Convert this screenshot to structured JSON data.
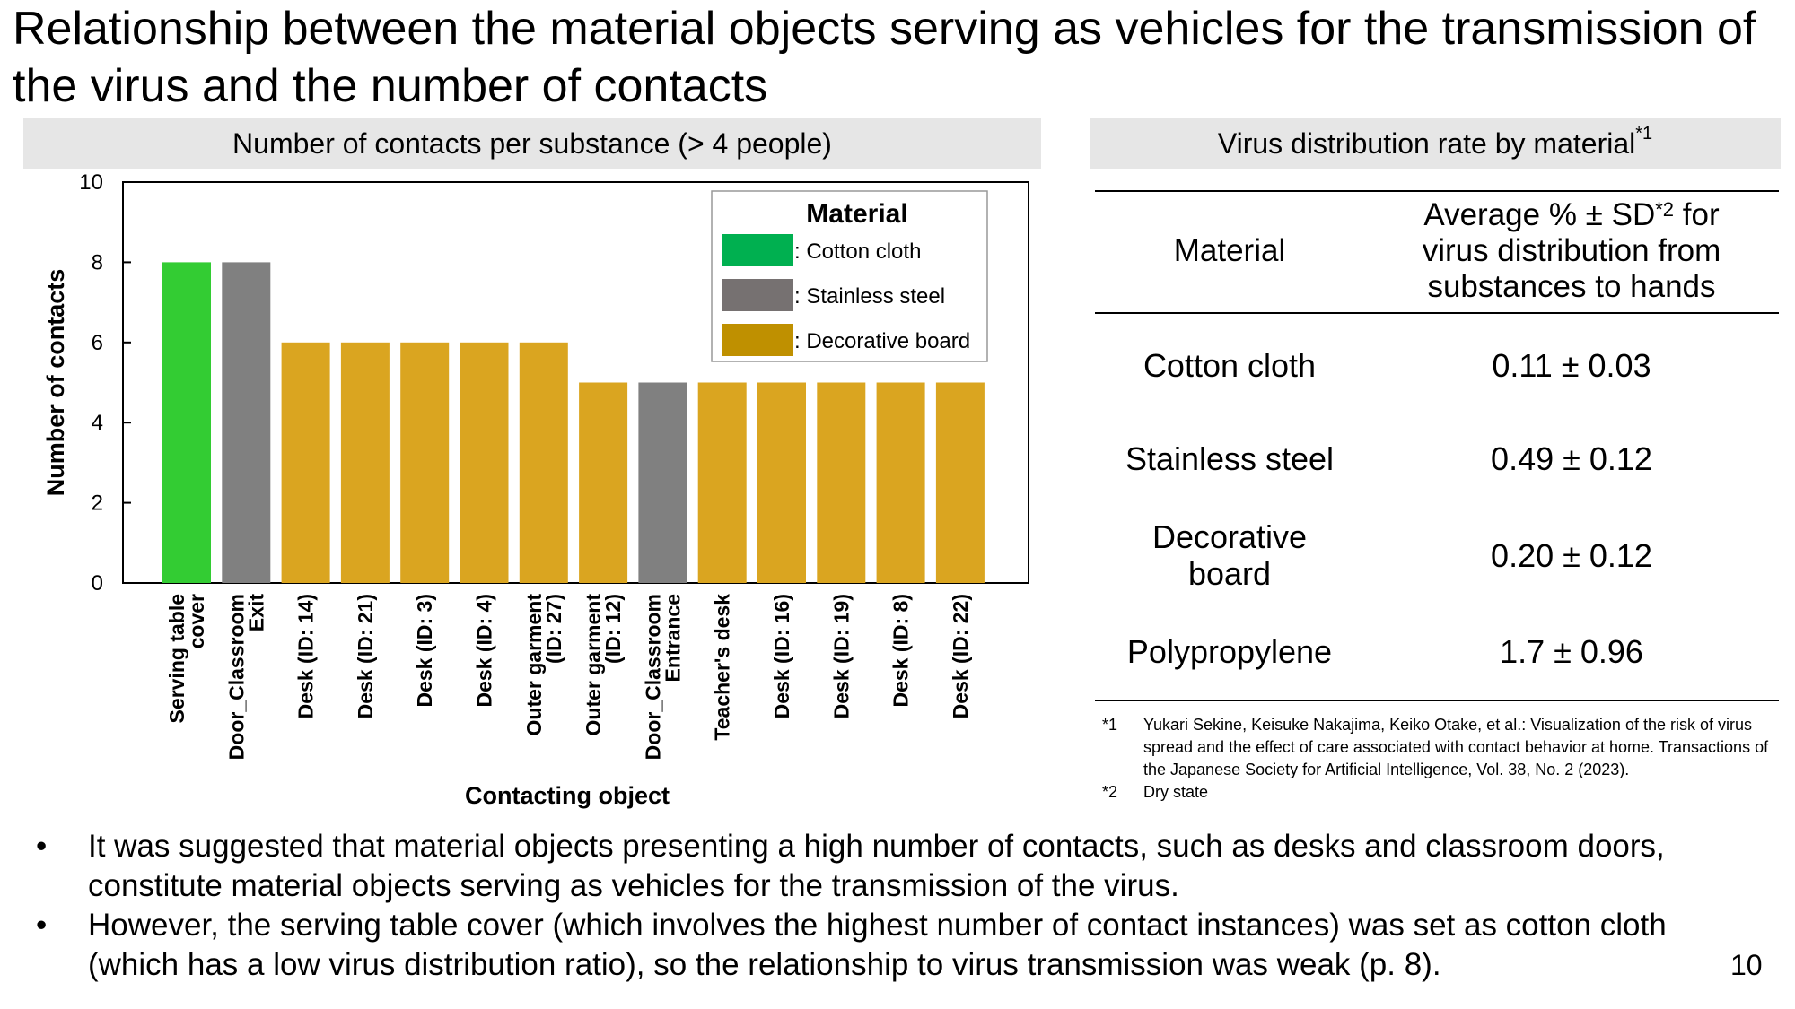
{
  "title": "Relationship between the material objects serving as vehicles for the transmission of the virus and the number of contacts",
  "chart_header": "Number of contacts per substance (> 4 people)",
  "chart_data": {
    "type": "bar",
    "title": "Number of contacts per substance (> 4 people)",
    "xlabel": "Contacting object",
    "ylabel": "Number of contacts",
    "ylim": [
      0,
      10
    ],
    "yticks": [
      "0",
      "2",
      "4",
      "6",
      "8",
      "10"
    ],
    "grid": false,
    "legend_position": "top-right",
    "legend_title": "Material",
    "legend": [
      {
        "label": ": Cotton cloth",
        "color": "#00b050"
      },
      {
        "label": ": Stainless steel",
        "color": "#767171"
      },
      {
        "label": ": Decorative board",
        "color": "#bf9000"
      }
    ],
    "categories": [
      [
        "Serving table",
        "cover"
      ],
      [
        "Door_Classroom",
        "Exit"
      ],
      [
        "Desk (ID: 14)"
      ],
      [
        "Desk (ID: 21)"
      ],
      [
        "Desk (ID: 3)"
      ],
      [
        "Desk (ID: 4)"
      ],
      [
        "Outer garment",
        "(ID: 27)"
      ],
      [
        "Outer garment",
        "(ID: 12)"
      ],
      [
        "Door_Classroom",
        "Entrance"
      ],
      [
        "Teacher's desk"
      ],
      [
        "Desk (ID: 16)"
      ],
      [
        "Desk (ID: 19)"
      ],
      [
        "Desk (ID: 8)"
      ],
      [
        "Desk (ID: 22)"
      ]
    ],
    "values": [
      8,
      8,
      6,
      6,
      6,
      6,
      6,
      5,
      5,
      5,
      5,
      5,
      5,
      5
    ],
    "colors": [
      "#33cc33",
      "#808080",
      "#daa520",
      "#daa520",
      "#daa520",
      "#daa520",
      "#daa520",
      "#daa520",
      "#808080",
      "#daa520",
      "#daa520",
      "#daa520",
      "#daa520",
      "#daa520"
    ]
  },
  "table": {
    "header": "Virus distribution rate by material",
    "header_note": "*1",
    "col_material": "Material",
    "col_rate_line1_pre": "Average % ± SD",
    "col_rate_line1_note": "*2",
    "col_rate_line1_post": " for",
    "col_rate_line2": "virus distribution from",
    "col_rate_line3": "substances to hands",
    "rows": [
      {
        "material": "Cotton cloth",
        "rate": "0.11 ± 0.03"
      },
      {
        "material": "Stainless steel",
        "rate": "0.49 ± 0.12"
      },
      {
        "material": "Decorative board",
        "rate": "0.20 ± 0.12"
      },
      {
        "material": "Polypropylene",
        "rate": "1.7 ± 0.96"
      }
    ]
  },
  "footnotes": [
    {
      "mark": "*1",
      "text": "Yukari Sekine, Keisuke Nakajima, Keiko Otake, et al.: Visualization of the risk of virus spread and the effect of care associated with contact behavior at home. Transactions of the Japanese Society for Artificial Intelligence, Vol. 38, No. 2 (2023)."
    },
    {
      "mark": "*2",
      "text": "Dry state"
    }
  ],
  "bullets": [
    "It was suggested that material objects presenting a high number of contacts, such as desks and classroom doors, constitute material objects serving as vehicles for the transmission of the virus.",
    "However, the serving table cover (which involves the highest number of contact instances) was set as cotton cloth (which has a low virus distribution ratio), so the relationship to virus transmission was weak (p. 8)."
  ],
  "page_number": "10"
}
